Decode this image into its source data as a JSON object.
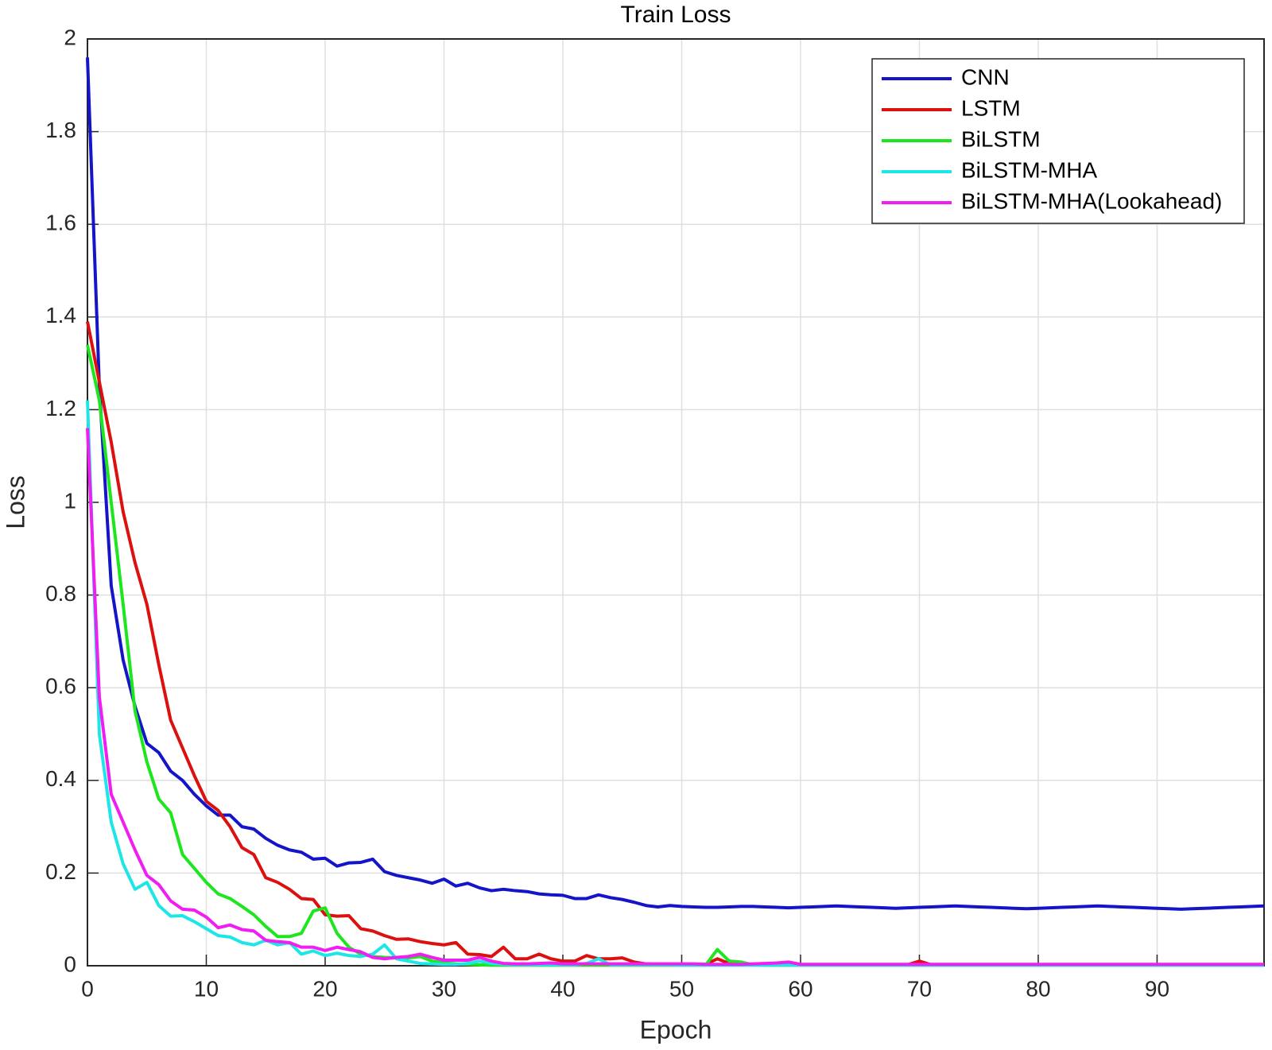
{
  "chart_data": {
    "type": "line",
    "title": "Train Loss",
    "x_label": "Epoch",
    "y_label": "Loss",
    "x": [
      0,
      1,
      2,
      3,
      4,
      5,
      6,
      7,
      8,
      9,
      10,
      11,
      12,
      13,
      14,
      15,
      16,
      17,
      18,
      19,
      20,
      21,
      22,
      23,
      24,
      25,
      26,
      27,
      28,
      29,
      30,
      31,
      32,
      33,
      34,
      35,
      36,
      37,
      38,
      39,
      40,
      41,
      42,
      43,
      44,
      45,
      46,
      47,
      48,
      49,
      50,
      51,
      52,
      53,
      54,
      55,
      56,
      57,
      58,
      59,
      60,
      61,
      62,
      63,
      64,
      65,
      66,
      67,
      68,
      69,
      70,
      71,
      72,
      73,
      74,
      75,
      76,
      77,
      78,
      79,
      80,
      81,
      82,
      83,
      84,
      85,
      86,
      87,
      88,
      89,
      90,
      91,
      92,
      93,
      94,
      95,
      96,
      97,
      98,
      99
    ],
    "series": [
      {
        "name": "CNN",
        "color": "#1414c8",
        "values": [
          1.96,
          1.25,
          0.82,
          0.66,
          0.56,
          0.48,
          0.46,
          0.42,
          0.4,
          0.37,
          0.345,
          0.325,
          0.325,
          0.3,
          0.295,
          0.275,
          0.26,
          0.25,
          0.245,
          0.23,
          0.232,
          0.215,
          0.222,
          0.223,
          0.23,
          0.203,
          0.195,
          0.19,
          0.185,
          0.178,
          0.187,
          0.172,
          0.178,
          0.168,
          0.162,
          0.165,
          0.162,
          0.16,
          0.155,
          0.153,
          0.152,
          0.145,
          0.145,
          0.153,
          0.147,
          0.143,
          0.137,
          0.13,
          0.127,
          0.13,
          0.128,
          0.127,
          0.126,
          0.126,
          0.127,
          0.128,
          0.128,
          0.127,
          0.126,
          0.125,
          0.126,
          0.127,
          0.128,
          0.129,
          0.128,
          0.127,
          0.126,
          0.125,
          0.124,
          0.125,
          0.126,
          0.127,
          0.128,
          0.129,
          0.128,
          0.127,
          0.126,
          0.125,
          0.124,
          0.123,
          0.124,
          0.125,
          0.126,
          0.127,
          0.128,
          0.129,
          0.128,
          0.127,
          0.126,
          0.125,
          0.124,
          0.123,
          0.122,
          0.123,
          0.124,
          0.125,
          0.126,
          0.127,
          0.128,
          0.129
        ]
      },
      {
        "name": "LSTM",
        "color": "#dd1010",
        "values": [
          1.39,
          1.26,
          1.13,
          0.98,
          0.87,
          0.78,
          0.65,
          0.53,
          0.47,
          0.41,
          0.355,
          0.335,
          0.3,
          0.255,
          0.24,
          0.19,
          0.18,
          0.165,
          0.145,
          0.143,
          0.11,
          0.107,
          0.108,
          0.08,
          0.075,
          0.065,
          0.057,
          0.058,
          0.052,
          0.048,
          0.045,
          0.05,
          0.025,
          0.024,
          0.02,
          0.04,
          0.015,
          0.015,
          0.025,
          0.015,
          0.01,
          0.01,
          0.022,
          0.015,
          0.015,
          0.017,
          0.008,
          0.004,
          0.003,
          0.003,
          0.003,
          0.003,
          0.003,
          0.015,
          0.005,
          0.003,
          0.002,
          0.002,
          0.002,
          0.002,
          0.002,
          0.002,
          0.002,
          0.002,
          0.002,
          0.002,
          0.002,
          0.002,
          0.002,
          0.002,
          0.01,
          0.002,
          0.002,
          0.002,
          0.002,
          0.002,
          0.002,
          0.002,
          0.002,
          0.002,
          0.002,
          0.002,
          0.002,
          0.002,
          0.002,
          0.002,
          0.002,
          0.002,
          0.002,
          0.002,
          0.002,
          0.002,
          0.002,
          0.002,
          0.002,
          0.002,
          0.002,
          0.002,
          0.002,
          0.002
        ]
      },
      {
        "name": "BiLSTM",
        "color": "#1ee61e",
        "values": [
          1.34,
          1.22,
          1.0,
          0.78,
          0.55,
          0.44,
          0.36,
          0.33,
          0.24,
          0.21,
          0.18,
          0.155,
          0.145,
          0.128,
          0.11,
          0.085,
          0.063,
          0.063,
          0.07,
          0.118,
          0.125,
          0.07,
          0.04,
          0.025,
          0.02,
          0.018,
          0.017,
          0.017,
          0.02,
          0.01,
          0.006,
          0.004,
          0.003,
          0.002,
          0.001,
          0.001,
          0.001,
          0.001,
          0.001,
          0.001,
          0.001,
          0.001,
          0.001,
          0.001,
          0.001,
          0.001,
          0.001,
          0.001,
          0.001,
          0.001,
          0.001,
          0.001,
          0.001,
          0.035,
          0.01,
          0.008,
          0.002,
          0.001,
          0.001,
          0.001,
          0.001,
          0.001,
          0.001,
          0.001,
          0.001,
          0.001,
          0.001,
          0.001,
          0.001,
          0.001,
          0.001,
          0.001,
          0.001,
          0.001,
          0.001,
          0.001,
          0.001,
          0.001,
          0.001,
          0.001,
          0.001,
          0.001,
          0.001,
          0.001,
          0.001,
          0.001,
          0.001,
          0.001,
          0.001,
          0.001,
          0.001,
          0.001,
          0.001,
          0.001,
          0.001,
          0.001,
          0.001,
          0.001,
          0.001,
          0.001
        ]
      },
      {
        "name": "BiLSTM-MHA",
        "color": "#1ee6e6",
        "values": [
          1.22,
          0.5,
          0.31,
          0.22,
          0.165,
          0.18,
          0.13,
          0.107,
          0.108,
          0.095,
          0.08,
          0.065,
          0.062,
          0.05,
          0.045,
          0.055,
          0.045,
          0.05,
          0.025,
          0.032,
          0.022,
          0.027,
          0.022,
          0.02,
          0.025,
          0.045,
          0.015,
          0.01,
          0.005,
          0.004,
          0.003,
          0.003,
          0.005,
          0.01,
          0.005,
          0.003,
          0.002,
          0.002,
          0.002,
          0.002,
          0.002,
          0.002,
          0.005,
          0.015,
          0.002,
          0.002,
          0.002,
          0.002,
          0.002,
          0.002,
          0.001,
          0.001,
          0.001,
          0.001,
          0.001,
          0.001,
          0.001,
          0.001,
          0.001,
          0.001,
          0.001,
          0.001,
          0.001,
          0.001,
          0.001,
          0.001,
          0.001,
          0.001,
          0.001,
          0.001,
          0.001,
          0.001,
          0.001,
          0.001,
          0.001,
          0.001,
          0.001,
          0.001,
          0.001,
          0.001,
          0.001,
          0.001,
          0.001,
          0.001,
          0.001,
          0.001,
          0.001,
          0.001,
          0.001,
          0.001,
          0.001,
          0.001,
          0.001,
          0.001,
          0.001,
          0.001,
          0.001,
          0.001,
          0.001,
          0.001
        ]
      },
      {
        "name": "BiLSTM-MHA(Lookahead)",
        "color": "#f01ef0",
        "values": [
          1.16,
          0.58,
          0.37,
          0.31,
          0.25,
          0.195,
          0.175,
          0.14,
          0.122,
          0.12,
          0.105,
          0.082,
          0.088,
          0.078,
          0.075,
          0.055,
          0.052,
          0.05,
          0.04,
          0.04,
          0.033,
          0.04,
          0.035,
          0.03,
          0.018,
          0.015,
          0.018,
          0.02,
          0.025,
          0.018,
          0.012,
          0.012,
          0.012,
          0.018,
          0.01,
          0.005,
          0.004,
          0.004,
          0.005,
          0.006,
          0.004,
          0.004,
          0.004,
          0.004,
          0.004,
          0.004,
          0.004,
          0.004,
          0.004,
          0.004,
          0.004,
          0.004,
          0.003,
          0.003,
          0.003,
          0.003,
          0.004,
          0.005,
          0.006,
          0.008,
          0.003,
          0.003,
          0.003,
          0.003,
          0.003,
          0.003,
          0.003,
          0.003,
          0.003,
          0.003,
          0.003,
          0.003,
          0.003,
          0.003,
          0.003,
          0.003,
          0.003,
          0.003,
          0.003,
          0.003,
          0.003,
          0.003,
          0.003,
          0.003,
          0.003,
          0.003,
          0.003,
          0.003,
          0.003,
          0.003,
          0.003,
          0.003,
          0.003,
          0.003,
          0.003,
          0.003,
          0.003,
          0.003,
          0.003,
          0.003
        ]
      }
    ],
    "xlim": [
      0,
      99
    ],
    "xticks": [
      0,
      10,
      20,
      30,
      40,
      50,
      60,
      70,
      80,
      90
    ],
    "ylim": [
      0,
      2
    ],
    "yticks": [
      0,
      0.2,
      0.4,
      0.6,
      0.8,
      1,
      1.2,
      1.4,
      1.6,
      1.8,
      2
    ],
    "grid": true,
    "legend": "northeast"
  }
}
